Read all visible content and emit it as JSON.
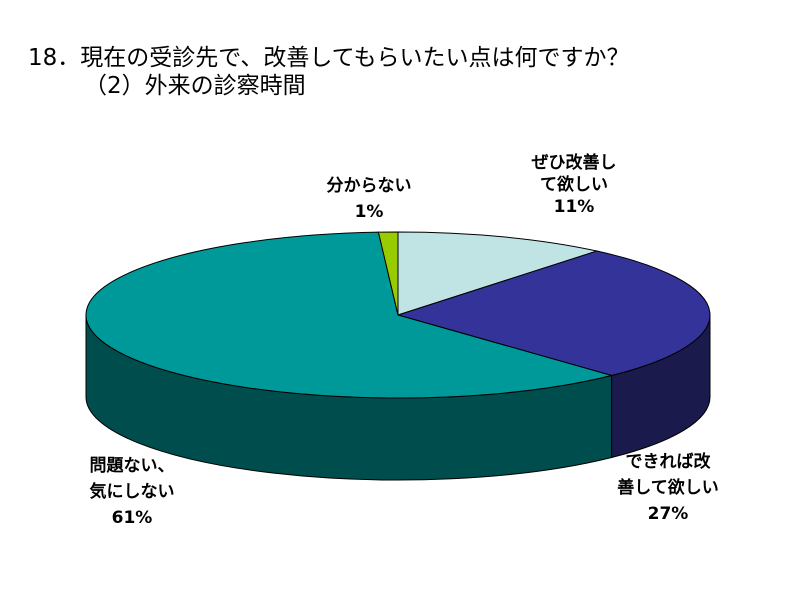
{
  "title": {
    "line1": "18．現在の受診先で、改善してもらいたい点は何ですか？",
    "line2": "（2）外来の診察時間"
  },
  "chart_data": {
    "type": "pie",
    "title": "18．現在の受診先で、改善してもらいたい点は何ですか？ （2）外来の診察時間",
    "three_d": true,
    "slices": [
      {
        "label": "ぜひ改善して欲しい",
        "value": 11,
        "value_label": "11%",
        "color": "#c0e4e4"
      },
      {
        "label": "できれば改善して欲しい",
        "value": 27,
        "value_label": "27%",
        "color": "#333399"
      },
      {
        "label": "問題ない、気にしない",
        "value": 61,
        "value_label": "61%",
        "color": "#009999"
      },
      {
        "label": "分からない",
        "value": 1,
        "value_label": "1%",
        "color": "#99cc00"
      }
    ],
    "labels": [
      {
        "lines": [
          "ぜひ改善し",
          "て欲しい"
        ],
        "pct": "11%"
      },
      {
        "lines": [
          "できれば改",
          "善して欲しい"
        ],
        "pct": "27%"
      },
      {
        "lines": [
          "問題ない、",
          "気にしない"
        ],
        "pct": "61%"
      },
      {
        "lines": [
          "分からない"
        ],
        "pct": "1%"
      }
    ]
  }
}
